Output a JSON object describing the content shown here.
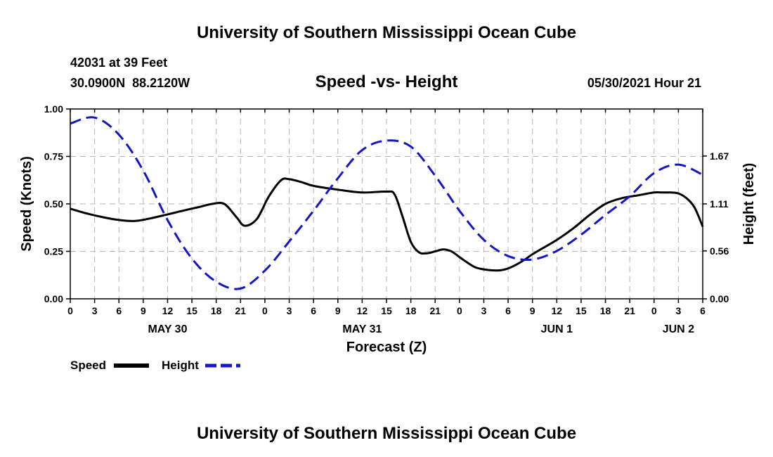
{
  "header": {
    "top_title": "University of Southern Mississippi Ocean Cube",
    "station_depth": "42031 at 39 Feet",
    "coordinates": "30.0900N  88.2120W",
    "chart_title": "Speed -vs- Height",
    "forecast_stamp": "05/30/2021 Hour 21"
  },
  "footer": {
    "bottom_title": "University of Southern Mississippi Ocean Cube"
  },
  "chart_data": {
    "type": "line",
    "title": "Speed -vs- Height",
    "xlabel": "Forecast (Z)",
    "ylabel_left": "Speed (Knots)",
    "ylabel_right": "Height (feet)",
    "x_unit": "hours from May 30 00Z",
    "x_range": [
      0,
      78
    ],
    "y_left_range": [
      0,
      1.0
    ],
    "y_right_range": [
      0,
      2.22
    ],
    "y_left_ticks": [
      {
        "value": 0.0,
        "label": "0.00"
      },
      {
        "value": 0.25,
        "label": "0.25"
      },
      {
        "value": 0.5,
        "label": "0.50"
      },
      {
        "value": 0.75,
        "label": "0.75"
      },
      {
        "value": 1.0,
        "label": "1.00"
      }
    ],
    "y_right_ticks": [
      {
        "value": 0.0,
        "label": "0.00"
      },
      {
        "value": 0.56,
        "label": "0.56"
      },
      {
        "value": 1.11,
        "label": "1.11"
      },
      {
        "value": 1.67,
        "label": "1.67"
      }
    ],
    "x_ticks": [
      {
        "x": 0,
        "label": "0"
      },
      {
        "x": 3,
        "label": "3"
      },
      {
        "x": 6,
        "label": "6"
      },
      {
        "x": 9,
        "label": "9"
      },
      {
        "x": 12,
        "label": "12"
      },
      {
        "x": 15,
        "label": "15"
      },
      {
        "x": 18,
        "label": "18"
      },
      {
        "x": 21,
        "label": "21"
      },
      {
        "x": 24,
        "label": "0"
      },
      {
        "x": 27,
        "label": "3"
      },
      {
        "x": 30,
        "label": "6"
      },
      {
        "x": 33,
        "label": "9"
      },
      {
        "x": 36,
        "label": "12"
      },
      {
        "x": 39,
        "label": "15"
      },
      {
        "x": 42,
        "label": "18"
      },
      {
        "x": 45,
        "label": "21"
      },
      {
        "x": 48,
        "label": "0"
      },
      {
        "x": 51,
        "label": "3"
      },
      {
        "x": 54,
        "label": "6"
      },
      {
        "x": 57,
        "label": "9"
      },
      {
        "x": 60,
        "label": "12"
      },
      {
        "x": 63,
        "label": "15"
      },
      {
        "x": 66,
        "label": "18"
      },
      {
        "x": 69,
        "label": "21"
      },
      {
        "x": 72,
        "label": "0"
      },
      {
        "x": 75,
        "label": "3"
      },
      {
        "x": 78,
        "label": "6"
      }
    ],
    "day_labels": [
      {
        "x": 12,
        "label": "MAY 30"
      },
      {
        "x": 36,
        "label": "MAY 31"
      },
      {
        "x": 60,
        "label": "JUN 1"
      },
      {
        "x": 75,
        "label": "JUN 2"
      }
    ],
    "series": [
      {
        "name": "Speed",
        "axis": "left",
        "color": "#000000",
        "dash": "solid",
        "x": [
          0,
          2,
          4,
          6,
          8,
          10,
          12,
          14,
          16,
          17.5,
          19,
          20.5,
          21.5,
          23,
          24.5,
          26,
          27,
          28.5,
          30,
          33,
          36,
          39,
          40,
          41,
          42,
          43,
          44,
          45,
          46,
          47,
          48,
          49,
          50,
          51,
          52,
          53,
          54,
          55,
          56,
          57,
          58,
          60,
          62,
          64,
          66,
          68,
          70,
          72,
          73,
          74,
          75,
          76,
          77,
          78
        ],
        "y": [
          0.475,
          0.45,
          0.43,
          0.415,
          0.41,
          0.425,
          0.445,
          0.465,
          0.485,
          0.5,
          0.5,
          0.43,
          0.385,
          0.42,
          0.54,
          0.625,
          0.63,
          0.615,
          0.595,
          0.575,
          0.56,
          0.565,
          0.55,
          0.43,
          0.3,
          0.245,
          0.24,
          0.25,
          0.26,
          0.25,
          0.22,
          0.19,
          0.165,
          0.155,
          0.15,
          0.15,
          0.16,
          0.18,
          0.205,
          0.235,
          0.26,
          0.31,
          0.37,
          0.44,
          0.5,
          0.53,
          0.545,
          0.56,
          0.56,
          0.56,
          0.555,
          0.53,
          0.48,
          0.38
        ]
      },
      {
        "name": "Height",
        "axis": "right",
        "color": "#1515c8",
        "dash": "dashed",
        "x": [
          0,
          3,
          6,
          9,
          12,
          15,
          18,
          21,
          24,
          27,
          30,
          33,
          36,
          39,
          42,
          45,
          48,
          51,
          54,
          57,
          60,
          63,
          66,
          69,
          72,
          75,
          78
        ],
        "y": [
          2.05,
          2.12,
          1.92,
          1.5,
          0.92,
          0.47,
          0.2,
          0.12,
          0.33,
          0.67,
          1.03,
          1.41,
          1.74,
          1.85,
          1.78,
          1.44,
          1.03,
          0.69,
          0.5,
          0.46,
          0.56,
          0.75,
          0.98,
          1.2,
          1.47,
          1.57,
          1.45
        ]
      }
    ],
    "legend": [
      {
        "label": "Speed",
        "color": "#000000",
        "dash": "solid"
      },
      {
        "label": "Height",
        "color": "#1515c8",
        "dash": "dashed"
      }
    ],
    "legend_position": "bottom-left",
    "grid": true
  }
}
